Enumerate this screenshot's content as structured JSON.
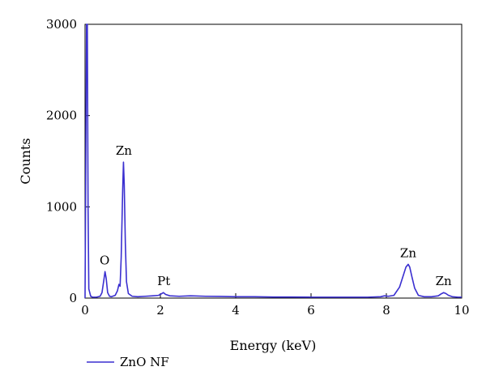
{
  "chart_data": {
    "type": "line",
    "xlabel": "Energy (keV)",
    "ylabel": "Counts",
    "xlim": [
      0,
      10
    ],
    "ylim": [
      0,
      3000
    ],
    "x_ticks": [
      0,
      2,
      4,
      6,
      8,
      10
    ],
    "y_ticks": [
      0,
      1000,
      2000,
      3000
    ],
    "grid": false,
    "legend_position": "bottom-left",
    "series": [
      {
        "name": "ZnO NF",
        "color": "#3a2fd0",
        "x": [
          0.0,
          0.02,
          0.04,
          0.06,
          0.08,
          0.1,
          0.15,
          0.2,
          0.3,
          0.4,
          0.45,
          0.5,
          0.53,
          0.56,
          0.6,
          0.65,
          0.7,
          0.8,
          0.86,
          0.9,
          0.93,
          0.96,
          1.0,
          1.02,
          1.04,
          1.07,
          1.1,
          1.15,
          1.25,
          1.4,
          1.6,
          1.8,
          1.95,
          2.02,
          2.08,
          2.14,
          2.25,
          2.5,
          2.8,
          3.2,
          3.6,
          4.0,
          4.5,
          5.0,
          5.5,
          6.0,
          6.5,
          7.0,
          7.5,
          7.85,
          7.95,
          8.05,
          8.2,
          8.35,
          8.45,
          8.52,
          8.58,
          8.62,
          8.68,
          8.75,
          8.85,
          9.0,
          9.2,
          9.38,
          9.45,
          9.52,
          9.58,
          9.65,
          9.75,
          9.9,
          10.0
        ],
        "values": [
          0,
          1500,
          3000,
          3000,
          1000,
          100,
          20,
          10,
          10,
          20,
          60,
          200,
          290,
          220,
          60,
          20,
          15,
          30,
          80,
          150,
          130,
          450,
          1200,
          1490,
          1250,
          600,
          180,
          50,
          20,
          15,
          20,
          25,
          30,
          45,
          60,
          40,
          25,
          20,
          25,
          20,
          18,
          15,
          15,
          12,
          12,
          10,
          10,
          10,
          10,
          15,
          25,
          20,
          30,
          120,
          250,
          340,
          370,
          340,
          230,
          110,
          30,
          15,
          15,
          25,
          45,
          60,
          50,
          30,
          15,
          10,
          10
        ]
      }
    ],
    "annotations": [
      {
        "text": "O",
        "x": 0.52,
        "y": 290
      },
      {
        "text": "Zn",
        "x": 1.03,
        "y": 1490
      },
      {
        "text": "Pt",
        "x": 2.09,
        "y": 60
      },
      {
        "text": "Zn",
        "x": 8.58,
        "y": 370
      },
      {
        "text": "Zn",
        "x": 9.52,
        "y": 60
      }
    ]
  }
}
